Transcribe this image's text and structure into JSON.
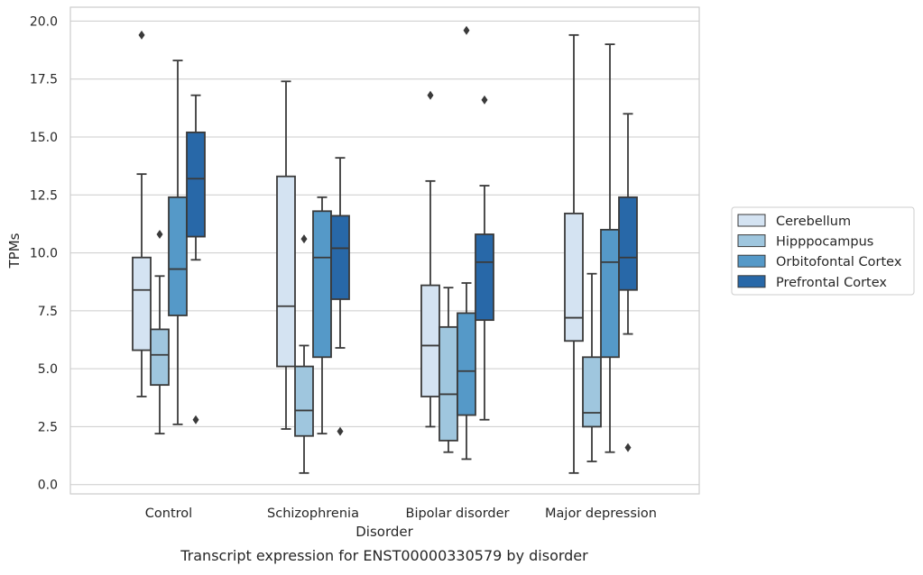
{
  "chart_data": {
    "type": "box",
    "caption": "Transcript expression for ENST00000330579 by disorder",
    "xlabel": "Disorder",
    "ylabel": "TPMs",
    "ylim": [
      -0.4,
      20.6
    ],
    "yticks": [
      0.0,
      2.5,
      5.0,
      7.5,
      10.0,
      12.5,
      15.0,
      17.5,
      20.0
    ],
    "ytick_labels": [
      "0.0",
      "2.5",
      "5.0",
      "7.5",
      "10.0",
      "12.5",
      "15.0",
      "17.5",
      "20.0"
    ],
    "grid": "horizontal",
    "legend_position": "right",
    "categories": [
      "Control",
      "Schizophrenia",
      "Bipolar disorder",
      "Major depression"
    ],
    "series": [
      {
        "name": "Cerebellum",
        "color": "#d4e3f2",
        "boxes": [
          {
            "whisker_low": 3.8,
            "q1": 5.8,
            "median": 8.4,
            "q3": 9.8,
            "whisker_high": 13.4,
            "outliers": [
              19.4
            ]
          },
          {
            "whisker_low": 2.4,
            "q1": 5.1,
            "median": 7.7,
            "q3": 13.3,
            "whisker_high": 17.4,
            "outliers": []
          },
          {
            "whisker_low": 2.5,
            "q1": 3.8,
            "median": 6.0,
            "q3": 8.6,
            "whisker_high": 13.1,
            "outliers": [
              16.8
            ]
          },
          {
            "whisker_low": 0.5,
            "q1": 6.2,
            "median": 7.2,
            "q3": 11.7,
            "whisker_high": 19.4,
            "outliers": []
          }
        ]
      },
      {
        "name": "Hipppocampus",
        "color": "#9fc6de",
        "boxes": [
          {
            "whisker_low": 2.2,
            "q1": 4.3,
            "median": 5.6,
            "q3": 6.7,
            "whisker_high": 9.0,
            "outliers": [
              10.8
            ]
          },
          {
            "whisker_low": 0.5,
            "q1": 2.1,
            "median": 3.2,
            "q3": 5.1,
            "whisker_high": 6.0,
            "outliers": [
              10.6
            ]
          },
          {
            "whisker_low": 1.4,
            "q1": 1.9,
            "median": 3.9,
            "q3": 6.8,
            "whisker_high": 8.5,
            "outliers": []
          },
          {
            "whisker_low": 1.0,
            "q1": 2.5,
            "median": 3.1,
            "q3": 5.5,
            "whisker_high": 9.1,
            "outliers": []
          }
        ]
      },
      {
        "name": "Orbitofontal Cortex",
        "color": "#5599c8",
        "boxes": [
          {
            "whisker_low": 2.6,
            "q1": 7.3,
            "median": 9.3,
            "q3": 12.4,
            "whisker_high": 18.3,
            "outliers": []
          },
          {
            "whisker_low": 2.2,
            "q1": 5.5,
            "median": 9.8,
            "q3": 11.8,
            "whisker_high": 12.4,
            "outliers": []
          },
          {
            "whisker_low": 1.1,
            "q1": 3.0,
            "median": 4.9,
            "q3": 7.4,
            "whisker_high": 8.7,
            "outliers": [
              19.6
            ]
          },
          {
            "whisker_low": 1.4,
            "q1": 5.5,
            "median": 9.6,
            "q3": 11.0,
            "whisker_high": 19.0,
            "outliers": []
          }
        ]
      },
      {
        "name": "Prefrontal Cortex",
        "color": "#2868a8",
        "boxes": [
          {
            "whisker_low": 9.7,
            "q1": 10.7,
            "median": 13.2,
            "q3": 15.2,
            "whisker_high": 16.8,
            "outliers": [
              2.8
            ]
          },
          {
            "whisker_low": 5.9,
            "q1": 8.0,
            "median": 10.2,
            "q3": 11.6,
            "whisker_high": 14.1,
            "outliers": [
              2.3
            ]
          },
          {
            "whisker_low": 2.8,
            "q1": 7.1,
            "median": 9.6,
            "q3": 10.8,
            "whisker_high": 12.9,
            "outliers": [
              16.6
            ]
          },
          {
            "whisker_low": 6.5,
            "q1": 8.4,
            "median": 9.8,
            "q3": 12.4,
            "whisker_high": 16.0,
            "outliers": [
              1.6
            ]
          }
        ]
      }
    ]
  }
}
